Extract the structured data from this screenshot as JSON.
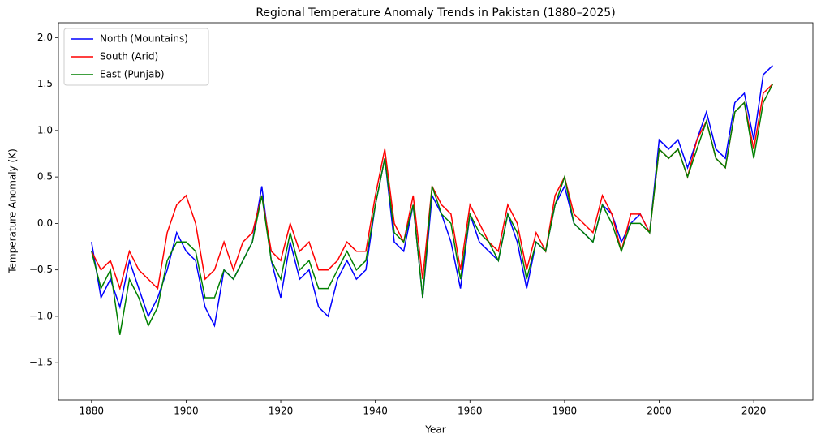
{
  "chart_data": {
    "type": "line",
    "title": "Regional Temperature Anomaly Trends in Pakistan (1880–2025)",
    "xlabel": "Year",
    "ylabel": "Temperature Anomaly (K)",
    "x": [
      1880,
      1882,
      1884,
      1886,
      1888,
      1890,
      1892,
      1894,
      1896,
      1898,
      1900,
      1902,
      1904,
      1906,
      1908,
      1910,
      1912,
      1914,
      1916,
      1918,
      1920,
      1922,
      1924,
      1926,
      1928,
      1930,
      1932,
      1934,
      1936,
      1938,
      1940,
      1942,
      1944,
      1946,
      1948,
      1950,
      1952,
      1954,
      1956,
      1958,
      1960,
      1962,
      1964,
      1966,
      1968,
      1970,
      1972,
      1974,
      1976,
      1978,
      1980,
      1982,
      1984,
      1986,
      1988,
      1990,
      1992,
      1994,
      1996,
      1998,
      2000,
      2002,
      2004,
      2006,
      2008,
      2010,
      2012,
      2014,
      2016,
      2018,
      2020,
      2022,
      2024
    ],
    "series": [
      {
        "name": "North (Mountains)",
        "color": "#0000ff",
        "values": [
          -0.2,
          -0.8,
          -0.6,
          -0.9,
          -0.4,
          -0.7,
          -1.0,
          -0.8,
          -0.5,
          -0.1,
          -0.3,
          -0.4,
          -0.9,
          -1.1,
          -0.5,
          -0.6,
          -0.4,
          -0.2,
          0.4,
          -0.4,
          -0.8,
          -0.2,
          -0.6,
          -0.5,
          -0.9,
          -1.0,
          -0.6,
          -0.4,
          -0.6,
          -0.5,
          0.2,
          0.7,
          -0.2,
          -0.3,
          0.2,
          -0.8,
          0.3,
          0.1,
          -0.2,
          -0.7,
          0.1,
          -0.2,
          -0.3,
          -0.4,
          0.1,
          -0.2,
          -0.7,
          -0.2,
          -0.3,
          0.2,
          0.4,
          0.0,
          -0.1,
          -0.2,
          0.2,
          0.1,
          -0.2,
          0.0,
          0.1,
          -0.1,
          0.9,
          0.8,
          0.9,
          0.6,
          0.9,
          1.2,
          0.8,
          0.7,
          1.3,
          1.4,
          0.9,
          1.6,
          1.7
        ]
      },
      {
        "name": "South (Arid)",
        "color": "#ff0000",
        "values": [
          -0.3,
          -0.5,
          -0.4,
          -0.7,
          -0.3,
          -0.5,
          -0.6,
          -0.7,
          -0.1,
          0.2,
          0.3,
          0.0,
          -0.6,
          -0.5,
          -0.2,
          -0.5,
          -0.2,
          -0.1,
          0.3,
          -0.3,
          -0.4,
          0.0,
          -0.3,
          -0.2,
          -0.5,
          -0.5,
          -0.4,
          -0.2,
          -0.3,
          -0.3,
          0.3,
          0.8,
          0.0,
          -0.2,
          0.3,
          -0.6,
          0.4,
          0.2,
          0.1,
          -0.5,
          0.2,
          0.0,
          -0.2,
          -0.3,
          0.2,
          0.0,
          -0.5,
          -0.1,
          -0.3,
          0.3,
          0.5,
          0.1,
          0.0,
          -0.1,
          0.3,
          0.1,
          -0.3,
          0.1,
          0.1,
          -0.1,
          0.8,
          0.7,
          0.8,
          0.5,
          0.9,
          1.1,
          0.7,
          0.6,
          1.2,
          1.3,
          0.8,
          1.4,
          1.5
        ]
      },
      {
        "name": "East (Punjab)",
        "color": "#008000",
        "values": [
          -0.3,
          -0.7,
          -0.5,
          -1.2,
          -0.6,
          -0.8,
          -1.1,
          -0.9,
          -0.4,
          -0.2,
          -0.2,
          -0.3,
          -0.8,
          -0.8,
          -0.5,
          -0.6,
          -0.4,
          -0.2,
          0.3,
          -0.4,
          -0.6,
          -0.1,
          -0.5,
          -0.4,
          -0.7,
          -0.7,
          -0.5,
          -0.3,
          -0.5,
          -0.4,
          0.2,
          0.7,
          -0.1,
          -0.2,
          0.2,
          -0.8,
          0.4,
          0.1,
          0.0,
          -0.6,
          0.1,
          -0.1,
          -0.2,
          -0.4,
          0.1,
          -0.1,
          -0.6,
          -0.2,
          -0.3,
          0.2,
          0.5,
          0.0,
          -0.1,
          -0.2,
          0.2,
          0.0,
          -0.3,
          0.0,
          0.0,
          -0.1,
          0.8,
          0.7,
          0.8,
          0.5,
          0.8,
          1.1,
          0.7,
          0.6,
          1.2,
          1.3,
          0.7,
          1.3,
          1.5
        ]
      }
    ],
    "xlim": [
      1873,
      2032.5
    ],
    "ylim": [
      -1.9,
      2.16
    ],
    "xticks": [
      1880,
      1900,
      1920,
      1940,
      1960,
      1980,
      2000,
      2020
    ],
    "yticks": [
      {
        "value": -1.5,
        "label": "−1.5"
      },
      {
        "value": -1.0,
        "label": "−1.0"
      },
      {
        "value": -0.5,
        "label": "−0.5"
      },
      {
        "value": 0,
        "label": "0.0"
      },
      0.5,
      {
        "value": 1.0,
        "label": "1.0"
      },
      1.5,
      {
        "value": 2.0,
        "label": "2.0"
      }
    ],
    "grid": false,
    "legend": "upper-left"
  }
}
